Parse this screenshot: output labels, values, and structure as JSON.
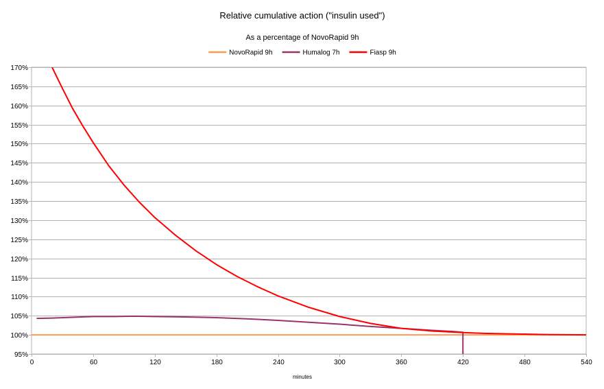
{
  "chart_data": {
    "type": "line",
    "title": "Relative cumulative action (\"insulin used\")",
    "subtitle": "As a percentage of NovoRapid 9h",
    "xlabel": "minutes",
    "ylabel": "",
    "xlim": [
      0,
      540
    ],
    "ylim": [
      95,
      170
    ],
    "x_ticks": [
      0,
      60,
      120,
      180,
      240,
      300,
      360,
      420,
      480,
      540
    ],
    "y_ticks": [
      95,
      100,
      105,
      110,
      115,
      120,
      125,
      130,
      135,
      140,
      145,
      150,
      155,
      160,
      165,
      170
    ],
    "y_tick_format": "percent",
    "grid": "horizontal",
    "legend": "top",
    "series": [
      {
        "name": "NovoRapid 9h",
        "color": "#ff9955",
        "x": [
          0,
          540
        ],
        "y": [
          100,
          100
        ]
      },
      {
        "name": "Humalog 7h",
        "color": "#993366",
        "x": [
          5,
          20,
          40,
          60,
          80,
          100,
          120,
          150,
          180,
          210,
          240,
          270,
          300,
          330,
          360,
          390,
          410,
          419,
          420,
          420
        ],
        "y": [
          104.3,
          104.4,
          104.6,
          104.8,
          104.8,
          104.9,
          104.8,
          104.7,
          104.5,
          104.2,
          103.8,
          103.3,
          102.8,
          102.2,
          101.7,
          101.2,
          100.9,
          100.7,
          100.7,
          94.8
        ]
      },
      {
        "name": "Fiasp 9h",
        "color": "#ff0000",
        "x": [
          20,
          30,
          40,
          50,
          60,
          75,
          90,
          105,
          120,
          140,
          160,
          180,
          200,
          220,
          240,
          270,
          300,
          330,
          360,
          390,
          420,
          440,
          460,
          480,
          500,
          520,
          540
        ],
        "y": [
          170,
          164.5,
          159.2,
          154.6,
          150.3,
          144.3,
          139.2,
          134.7,
          130.7,
          126.1,
          122.0,
          118.4,
          115.3,
          112.6,
          110.2,
          107.2,
          104.8,
          103.0,
          101.7,
          101.0,
          100.6,
          100.4,
          100.3,
          100.2,
          100.1,
          100.05,
          100
        ]
      }
    ]
  }
}
